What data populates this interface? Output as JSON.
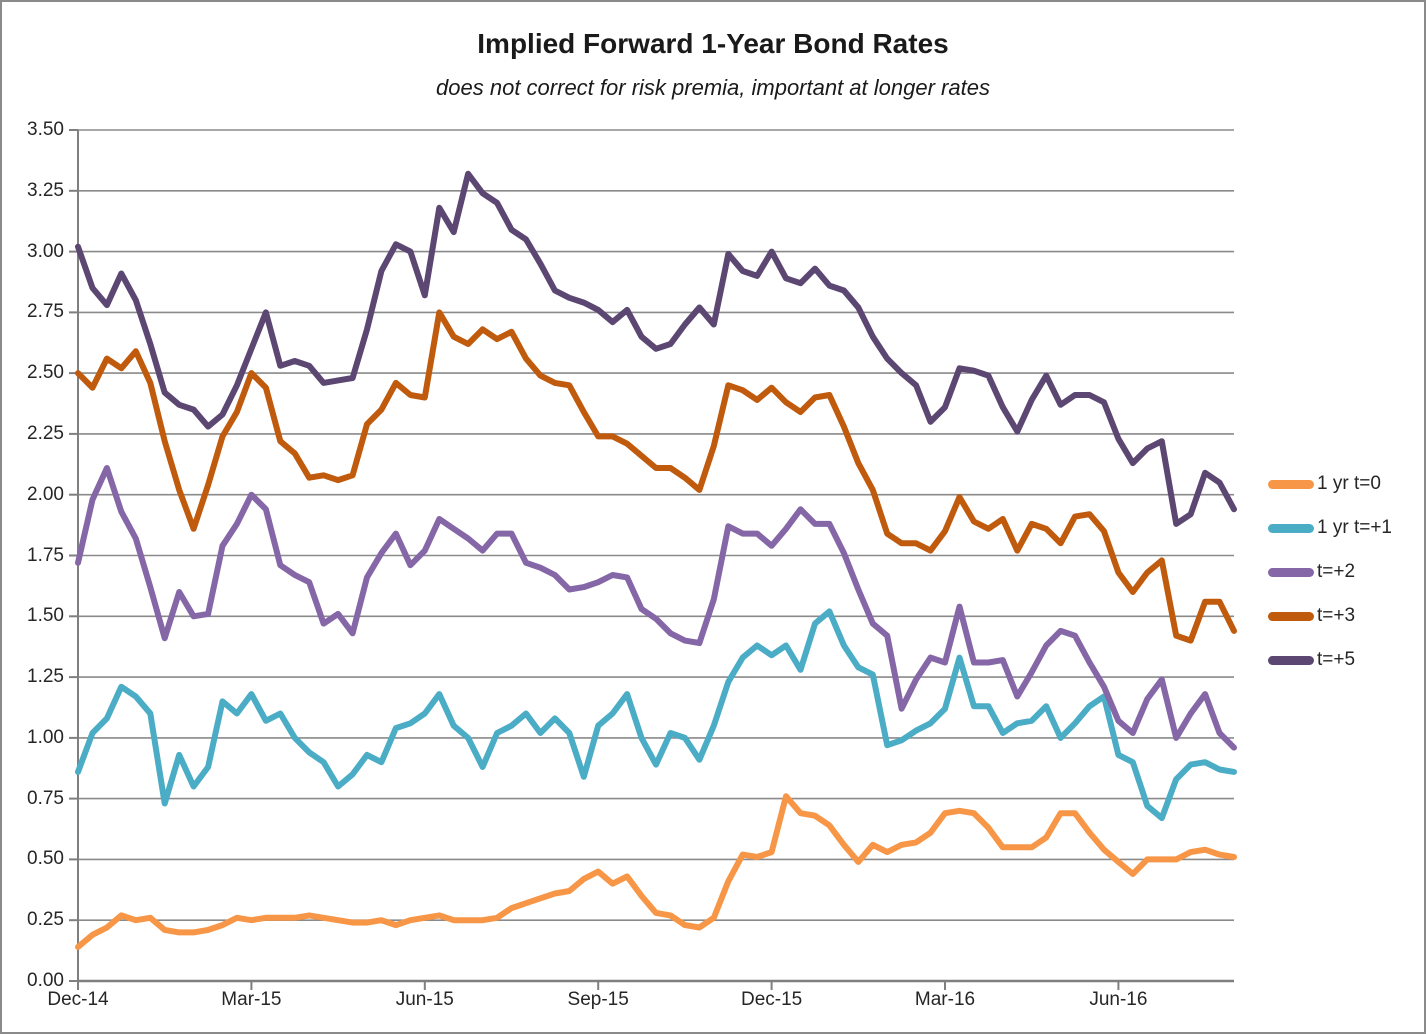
{
  "chart_data": {
    "type": "line",
    "title": "Implied Forward 1-Year Bond Rates",
    "subtitle": "does not correct for risk premia, important at longer rates",
    "grid": "horizontal",
    "legend_position": "right",
    "x_axis": {
      "tick_labels": [
        "Dec-14",
        "Mar-15",
        "Jun-15",
        "Sep-15",
        "Dec-15",
        "Mar-16",
        "Jun-16"
      ],
      "months_per_tick": 3,
      "total_months": 20,
      "x_unit": "months since Dec-2014, weekly (0.25-month) samples"
    },
    "y_axis": {
      "min": 0,
      "max": 3.5,
      "step": 0.25,
      "tick_labels_top_down": [
        "3.50",
        "3.25",
        "3.00",
        "2.75",
        "2.50",
        "2.25",
        "2.00",
        "1.75",
        "1.50",
        "1.25",
        "1.00",
        "0.75",
        "0.50",
        "0.25",
        "0.00"
      ]
    },
    "series": [
      {
        "name": "1 yr t=0",
        "color": "#F79646",
        "values": [
          0.14,
          0.19,
          0.22,
          0.27,
          0.25,
          0.26,
          0.21,
          0.2,
          0.2,
          0.21,
          0.23,
          0.26,
          0.25,
          0.26,
          0.26,
          0.26,
          0.27,
          0.26,
          0.25,
          0.24,
          0.24,
          0.25,
          0.23,
          0.25,
          0.26,
          0.27,
          0.25,
          0.25,
          0.25,
          0.26,
          0.3,
          0.32,
          0.34,
          0.36,
          0.37,
          0.42,
          0.45,
          0.4,
          0.43,
          0.35,
          0.28,
          0.27,
          0.23,
          0.22,
          0.26,
          0.41,
          0.52,
          0.51,
          0.53,
          0.76,
          0.69,
          0.68,
          0.64,
          0.56,
          0.49,
          0.56,
          0.53,
          0.56,
          0.57,
          0.61,
          0.69,
          0.7,
          0.69,
          0.63,
          0.55,
          0.55,
          0.55,
          0.59,
          0.69,
          0.69,
          0.61,
          0.54,
          0.49,
          0.44,
          0.5,
          0.5,
          0.5,
          0.53,
          0.54,
          0.52,
          0.51
        ]
      },
      {
        "name": "1 yr t=+1",
        "color": "#4BACC6",
        "values": [
          0.86,
          1.02,
          1.08,
          1.21,
          1.17,
          1.1,
          0.73,
          0.93,
          0.8,
          0.88,
          1.15,
          1.1,
          1.18,
          1.07,
          1.1,
          1.0,
          0.94,
          0.9,
          0.8,
          0.85,
          0.93,
          0.9,
          1.04,
          1.06,
          1.1,
          1.18,
          1.05,
          1.0,
          0.88,
          1.02,
          1.05,
          1.1,
          1.02,
          1.08,
          1.02,
          0.84,
          1.05,
          1.1,
          1.18,
          1.0,
          0.89,
          1.02,
          1.0,
          0.91,
          1.05,
          1.23,
          1.33,
          1.38,
          1.34,
          1.38,
          1.28,
          1.47,
          1.52,
          1.38,
          1.29,
          1.26,
          0.97,
          0.99,
          1.03,
          1.06,
          1.12,
          1.33,
          1.13,
          1.13,
          1.02,
          1.06,
          1.07,
          1.13,
          1.0,
          1.06,
          1.13,
          1.17,
          0.93,
          0.9,
          0.72,
          0.67,
          0.83,
          0.89,
          0.9,
          0.87,
          0.86
        ]
      },
      {
        "name": "t=+2",
        "color": "#8567A8",
        "values": [
          1.72,
          1.98,
          2.11,
          1.93,
          1.82,
          1.62,
          1.41,
          1.6,
          1.5,
          1.51,
          1.79,
          1.88,
          2.0,
          1.94,
          1.71,
          1.67,
          1.64,
          1.47,
          1.51,
          1.43,
          1.66,
          1.76,
          1.84,
          1.71,
          1.77,
          1.9,
          1.86,
          1.82,
          1.77,
          1.84,
          1.84,
          1.72,
          1.7,
          1.67,
          1.61,
          1.62,
          1.64,
          1.67,
          1.66,
          1.53,
          1.49,
          1.43,
          1.4,
          1.39,
          1.57,
          1.87,
          1.84,
          1.84,
          1.79,
          1.86,
          1.94,
          1.88,
          1.88,
          1.76,
          1.61,
          1.47,
          1.42,
          1.12,
          1.24,
          1.33,
          1.31,
          1.54,
          1.31,
          1.31,
          1.32,
          1.17,
          1.27,
          1.38,
          1.44,
          1.42,
          1.31,
          1.21,
          1.07,
          1.02,
          1.16,
          1.24,
          1.0,
          1.1,
          1.18,
          1.02,
          0.96
        ]
      },
      {
        "name": "t=+3",
        "color": "#C05A0D",
        "values": [
          2.5,
          2.44,
          2.56,
          2.52,
          2.59,
          2.46,
          2.22,
          2.02,
          1.86,
          2.04,
          2.24,
          2.34,
          2.5,
          2.44,
          2.22,
          2.17,
          2.07,
          2.08,
          2.06,
          2.08,
          2.29,
          2.35,
          2.46,
          2.41,
          2.4,
          2.75,
          2.65,
          2.62,
          2.68,
          2.64,
          2.67,
          2.56,
          2.49,
          2.46,
          2.45,
          2.34,
          2.24,
          2.24,
          2.21,
          2.16,
          2.11,
          2.11,
          2.07,
          2.02,
          2.2,
          2.45,
          2.43,
          2.39,
          2.44,
          2.38,
          2.34,
          2.4,
          2.41,
          2.28,
          2.13,
          2.02,
          1.84,
          1.8,
          1.8,
          1.77,
          1.85,
          1.99,
          1.89,
          1.86,
          1.9,
          1.77,
          1.88,
          1.86,
          1.8,
          1.91,
          1.92,
          1.85,
          1.68,
          1.6,
          1.68,
          1.73,
          1.42,
          1.4,
          1.56,
          1.56,
          1.44
        ]
      },
      {
        "name": "t=+5",
        "color": "#5B4772",
        "values": [
          3.02,
          2.85,
          2.78,
          2.91,
          2.8,
          2.62,
          2.42,
          2.37,
          2.35,
          2.28,
          2.33,
          2.45,
          2.6,
          2.75,
          2.53,
          2.55,
          2.53,
          2.46,
          2.47,
          2.48,
          2.68,
          2.92,
          3.03,
          3.0,
          2.82,
          3.18,
          3.08,
          3.32,
          3.24,
          3.2,
          3.09,
          3.05,
          2.95,
          2.84,
          2.81,
          2.79,
          2.76,
          2.71,
          2.76,
          2.65,
          2.6,
          2.62,
          2.7,
          2.77,
          2.7,
          2.99,
          2.92,
          2.9,
          3.0,
          2.89,
          2.87,
          2.93,
          2.86,
          2.84,
          2.77,
          2.65,
          2.56,
          2.5,
          2.45,
          2.3,
          2.36,
          2.52,
          2.51,
          2.49,
          2.36,
          2.26,
          2.39,
          2.49,
          2.37,
          2.41,
          2.41,
          2.38,
          2.23,
          2.13,
          2.19,
          2.22,
          1.88,
          1.92,
          2.09,
          2.05,
          1.94
        ]
      }
    ]
  }
}
